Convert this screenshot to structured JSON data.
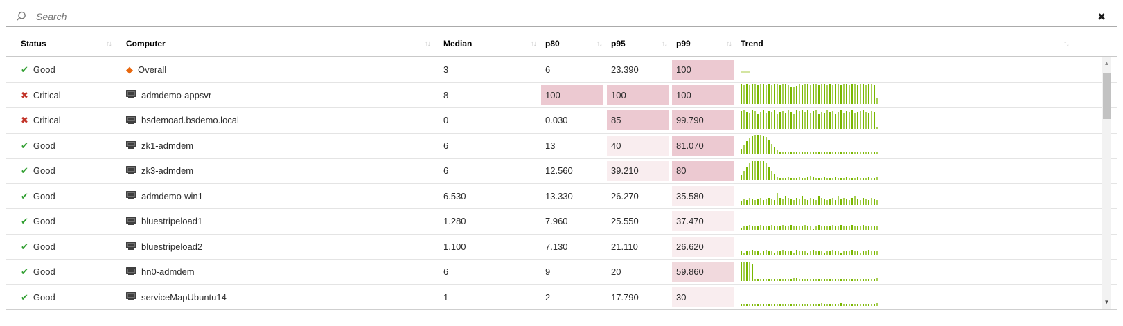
{
  "search": {
    "placeholder": "Search",
    "clear_icon": "✖"
  },
  "icons": {
    "check": "✔",
    "x": "✖",
    "diamond": "◆"
  },
  "scrollbar": {
    "up_icon": "▲",
    "down_icon": "▼"
  },
  "colors": {
    "green-dark": "#79b700",
    "green-light": "#a9cf56",
    "green-pale": "#d4e5a2",
    "pink-high": "#ecc9d1",
    "pink-med": "#f1d9dd",
    "pink-low": "#f9edef",
    "status-good": "#2f9e2f",
    "status-crit": "#c23328",
    "diamond": "#e8680f"
  },
  "table": {
    "sort_icon": "↑↓",
    "columns": [
      {
        "key": "status",
        "label": "Status"
      },
      {
        "key": "computer",
        "label": "Computer"
      },
      {
        "key": "median",
        "label": "Median"
      },
      {
        "key": "p80",
        "label": "p80"
      },
      {
        "key": "p95",
        "label": "p95"
      },
      {
        "key": "p99",
        "label": "p99"
      },
      {
        "key": "trend",
        "label": "Trend"
      }
    ],
    "rows": [
      {
        "status": "Good",
        "status_icon": "check",
        "computer": "Overall",
        "computer_icon": "diamond",
        "median": "3",
        "p80": {
          "v": "6",
          "hl": null
        },
        "p95": {
          "v": "23.390",
          "hl": null
        },
        "p99": {
          "v": "100",
          "hl": "high"
        },
        "trend": {
          "type": "dash",
          "bars": []
        }
      },
      {
        "status": "Critical",
        "status_icon": "x",
        "computer": "admdemo-appsvr",
        "computer_icon": "monitor",
        "median": "8",
        "p80": {
          "v": "100",
          "hl": "high"
        },
        "p95": {
          "v": "100",
          "hl": "high"
        },
        "p99": {
          "v": "100",
          "hl": "high"
        },
        "trend": {
          "type": "bars",
          "bars": [
            1,
            0.96,
            1,
            0.98,
            1,
            1,
            0.97,
            1,
            1,
            0.98,
            1,
            0.96,
            1,
            1,
            0.98,
            1,
            1,
            0.95,
            0.9,
            0.88,
            0.92,
            1,
            0.97,
            1,
            1,
            0.98,
            1,
            1,
            0.96,
            1,
            1,
            0.98,
            1,
            0.97,
            1,
            1,
            0.98,
            1,
            1,
            0.96,
            1,
            1,
            0.98,
            1,
            1,
            0.97,
            1,
            1,
            0.98,
            0.28
          ]
        }
      },
      {
        "status": "Critical",
        "status_icon": "x",
        "computer": "bsdemoad.bsdemo.local",
        "computer_icon": "monitor",
        "median": "0",
        "p80": {
          "v": "0.030",
          "hl": null
        },
        "p95": {
          "v": "85",
          "hl": "high"
        },
        "p99": {
          "v": "99.790",
          "hl": "high"
        },
        "trend": {
          "type": "bars",
          "bars": [
            0.95,
            1,
            0.9,
            0.85,
            1,
            0.95,
            0.8,
            0.9,
            1,
            0.85,
            0.95,
            0.9,
            1,
            0.8,
            0.9,
            0.95,
            0.85,
            1,
            0.9,
            0.8,
            1,
            0.95,
            1,
            0.9,
            1,
            0.85,
            0.95,
            1,
            0.8,
            0.9,
            0.85,
            1,
            0.9,
            0.95,
            0.8,
            0.9,
            1,
            0.85,
            0.95,
            0.9,
            1,
            0.85,
            0.9,
            0.95,
            1,
            0.9,
            0.85,
            0.95,
            0.9,
            0.1
          ]
        }
      },
      {
        "status": "Good",
        "status_icon": "check",
        "computer": "zk1-admdem",
        "computer_icon": "monitor",
        "median": "6",
        "p80": {
          "v": "13",
          "hl": null
        },
        "p95": {
          "v": "40",
          "hl": "low"
        },
        "p99": {
          "v": "81.070",
          "hl": "high"
        },
        "trend": {
          "type": "bars",
          "bars": [
            0.3,
            0.5,
            0.7,
            0.85,
            0.95,
            1,
            1,
            1,
            0.95,
            0.9,
            0.75,
            0.55,
            0.4,
            0.25,
            0.12,
            0.1,
            0.12,
            0.14,
            0.1,
            0.12,
            0.1,
            0.14,
            0.12,
            0.1,
            0.12,
            0.14,
            0.1,
            0.12,
            0.14,
            0.1,
            0.12,
            0.1,
            0.14,
            0.12,
            0.1,
            0.14,
            0.12,
            0.1,
            0.12,
            0.14,
            0.1,
            0.12,
            0.14,
            0.12,
            0.1,
            0.12,
            0.14,
            0.12,
            0.1,
            0.14
          ]
        }
      },
      {
        "status": "Good",
        "status_icon": "check",
        "computer": "zk3-admdem",
        "computer_icon": "monitor",
        "median": "6",
        "p80": {
          "v": "12.560",
          "hl": null
        },
        "p95": {
          "v": "39.210",
          "hl": "low"
        },
        "p99": {
          "v": "80",
          "hl": "high"
        },
        "trend": {
          "type": "bars",
          "bars": [
            0.25,
            0.45,
            0.65,
            0.85,
            0.95,
            1,
            1,
            1,
            0.95,
            0.85,
            0.65,
            0.45,
            0.3,
            0.15,
            0.1,
            0.12,
            0.1,
            0.14,
            0.12,
            0.1,
            0.12,
            0.14,
            0.1,
            0.12,
            0.16,
            0.18,
            0.14,
            0.12,
            0.1,
            0.12,
            0.14,
            0.1,
            0.12,
            0.1,
            0.14,
            0.12,
            0.1,
            0.12,
            0.14,
            0.1,
            0.12,
            0.1,
            0.14,
            0.12,
            0.1,
            0.12,
            0.14,
            0.1,
            0.12,
            0.14
          ]
        }
      },
      {
        "status": "Good",
        "status_icon": "check",
        "computer": "admdemo-win1",
        "computer_icon": "monitor",
        "median": "6.530",
        "p80": {
          "v": "13.330",
          "hl": null
        },
        "p95": {
          "v": "26.270",
          "hl": null
        },
        "p99": {
          "v": "35.580",
          "hl": "low"
        },
        "trend": {
          "type": "bars",
          "bars": [
            0.2,
            0.3,
            0.25,
            0.35,
            0.3,
            0.25,
            0.3,
            0.35,
            0.25,
            0.3,
            0.35,
            0.3,
            0.25,
            0.6,
            0.35,
            0.3,
            0.45,
            0.35,
            0.3,
            0.25,
            0.35,
            0.3,
            0.45,
            0.3,
            0.25,
            0.35,
            0.3,
            0.25,
            0.45,
            0.35,
            0.3,
            0.25,
            0.3,
            0.35,
            0.25,
            0.45,
            0.3,
            0.35,
            0.3,
            0.25,
            0.35,
            0.45,
            0.3,
            0.25,
            0.35,
            0.3,
            0.25,
            0.35,
            0.3,
            0.25
          ]
        }
      },
      {
        "status": "Good",
        "status_icon": "check",
        "computer": "bluestripeload1",
        "computer_icon": "monitor",
        "median": "1.280",
        "p80": {
          "v": "7.960",
          "hl": null
        },
        "p95": {
          "v": "25.550",
          "hl": null
        },
        "p99": {
          "v": "37.470",
          "hl": "low"
        },
        "trend": {
          "type": "bars",
          "bars": [
            0.15,
            0.25,
            0.2,
            0.3,
            0.25,
            0.2,
            0.25,
            0.3,
            0.2,
            0.25,
            0.2,
            0.3,
            0.25,
            0.2,
            0.25,
            0.3,
            0.2,
            0.25,
            0.3,
            0.25,
            0.2,
            0.25,
            0.2,
            0.3,
            0.25,
            0.2,
            0.05,
            0.25,
            0.3,
            0.2,
            0.25,
            0.2,
            0.25,
            0.3,
            0.2,
            0.25,
            0.3,
            0.2,
            0.25,
            0.2,
            0.3,
            0.25,
            0.2,
            0.25,
            0.3,
            0.2,
            0.25,
            0.2,
            0.25,
            0.2
          ]
        }
      },
      {
        "status": "Good",
        "status_icon": "check",
        "computer": "bluestripeload2",
        "computer_icon": "monitor",
        "median": "1.100",
        "p80": {
          "v": "7.130",
          "hl": null
        },
        "p95": {
          "v": "21.110",
          "hl": null
        },
        "p99": {
          "v": "26.620",
          "hl": "low"
        },
        "trend": {
          "type": "bars",
          "bars": [
            0.2,
            0.15,
            0.25,
            0.2,
            0.3,
            0.2,
            0.25,
            0.15,
            0.2,
            0.3,
            0.25,
            0.2,
            0.15,
            0.25,
            0.2,
            0.3,
            0.25,
            0.2,
            0.25,
            0.15,
            0.3,
            0.2,
            0.25,
            0.2,
            0.15,
            0.25,
            0.3,
            0.2,
            0.25,
            0.2,
            0.15,
            0.25,
            0.2,
            0.3,
            0.25,
            0.2,
            0.15,
            0.25,
            0.2,
            0.25,
            0.3,
            0.2,
            0.25,
            0.15,
            0.2,
            0.25,
            0.3,
            0.2,
            0.25,
            0.2
          ]
        }
      },
      {
        "status": "Good",
        "status_icon": "check",
        "computer": "hn0-admdem",
        "computer_icon": "monitor",
        "median": "6",
        "p80": {
          "v": "9",
          "hl": null
        },
        "p95": {
          "v": "20",
          "hl": null
        },
        "p99": {
          "v": "59.860",
          "hl": "med"
        },
        "trend": {
          "type": "bars",
          "bars": [
            1,
            1,
            1,
            1,
            0.85,
            0.12,
            0.1,
            0.12,
            0.1,
            0.12,
            0.1,
            0.12,
            0.1,
            0.12,
            0.1,
            0.12,
            0.1,
            0.12,
            0.1,
            0.14,
            0.18,
            0.12,
            0.1,
            0.12,
            0.1,
            0.12,
            0.1,
            0.12,
            0.1,
            0.12,
            0.1,
            0.12,
            0.1,
            0.12,
            0.1,
            0.12,
            0.1,
            0.12,
            0.1,
            0.12,
            0.1,
            0.12,
            0.1,
            0.12,
            0.1,
            0.12,
            0.1,
            0.12,
            0.1,
            0.16
          ]
        }
      },
      {
        "status": "Good",
        "status_icon": "check",
        "computer": "serviceMapUbuntu14",
        "computer_icon": "monitor",
        "median": "1",
        "p80": {
          "v": "2",
          "hl": null
        },
        "p95": {
          "v": "17.790",
          "hl": null
        },
        "p99": {
          "v": "30",
          "hl": "low"
        },
        "trend": {
          "type": "bars",
          "bars": [
            0.1,
            0.12,
            0.1,
            0.12,
            0.1,
            0.12,
            0.1,
            0.12,
            0.1,
            0.12,
            0.1,
            0.12,
            0.1,
            0.12,
            0.1,
            0.12,
            0.1,
            0.12,
            0.1,
            0.12,
            0.1,
            0.12,
            0.1,
            0.12,
            0.1,
            0.12,
            0.1,
            0.12,
            0.1,
            0.16,
            0.12,
            0.1,
            0.12,
            0.1,
            0.12,
            0.1,
            0.14,
            0.12,
            0.1,
            0.12,
            0.1,
            0.12,
            0.1,
            0.12,
            0.1,
            0.12,
            0.1,
            0.12,
            0.1,
            0.14
          ]
        }
      }
    ]
  }
}
